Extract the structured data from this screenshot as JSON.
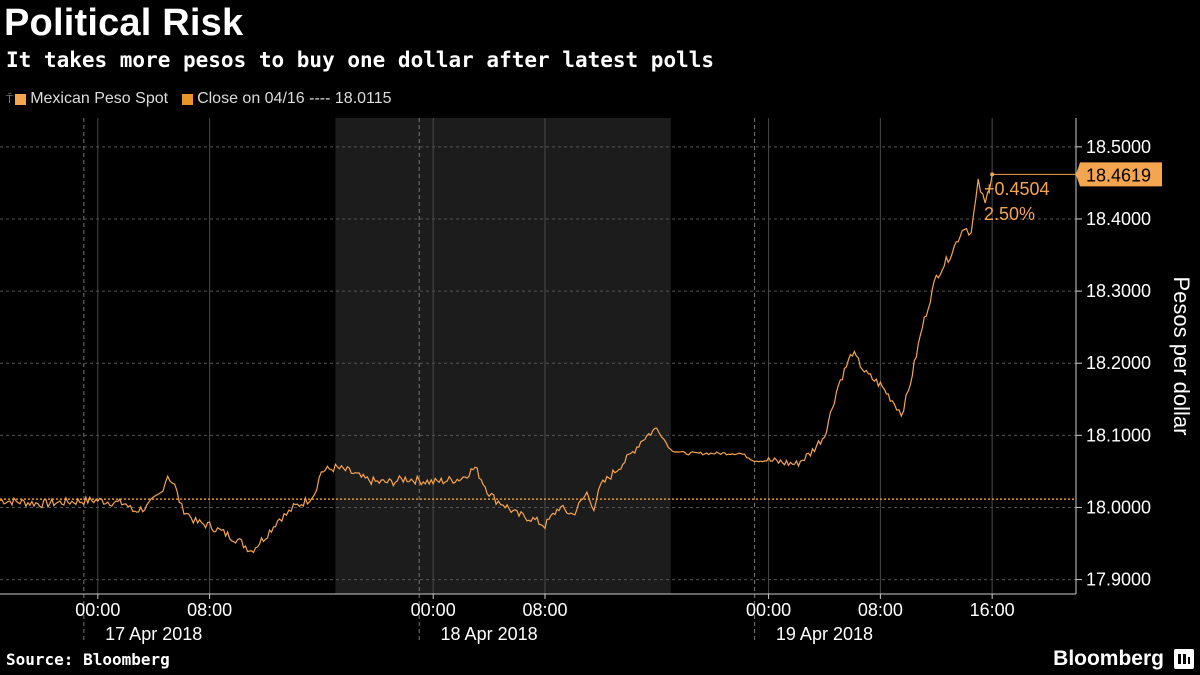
{
  "title": "Political Risk",
  "subtitle": "It takes more pesos to buy one dollar after latest polls",
  "legend": {
    "series_label": "Mexican Peso Spot",
    "close_label": "Close on 04/16 ---- 18.0115"
  },
  "last_value_label": "18.4619",
  "change_abs": "+0.4504",
  "change_pct": "2.50%",
  "source": "Source: Bloomberg",
  "brand": "Bloomberg",
  "colors": {
    "series": "#f5a44f",
    "ref_line": "#e8952e",
    "shade": "#1c1c1c",
    "background": "#000000"
  },
  "chart_data": {
    "type": "line",
    "ylabel": "Pesos per dollar",
    "ylim": [
      17.88,
      18.54
    ],
    "y_ticks": [
      17.9,
      18.0,
      18.1,
      18.2,
      18.3,
      18.4,
      18.5
    ],
    "y_tick_labels": [
      "17.9000",
      "18.0000",
      "18.1000",
      "18.2000",
      "18.3000",
      "18.4000",
      "18.5000"
    ],
    "x_ticks": [
      {
        "t": 0,
        "label": "00:00"
      },
      {
        "t": 8,
        "label": "08:00"
      },
      {
        "t": 24,
        "label": "00:00"
      },
      {
        "t": 32,
        "label": "08:00"
      },
      {
        "t": 48,
        "label": "00:00"
      },
      {
        "t": 56,
        "label": "08:00"
      },
      {
        "t": 64,
        "label": "16:00"
      }
    ],
    "dates": [
      {
        "t": 4,
        "label": "17 Apr 2018"
      },
      {
        "t": 28,
        "label": "18 Apr 2018"
      },
      {
        "t": 52,
        "label": "19 Apr 2018"
      }
    ],
    "day_boundaries": [
      -1,
      23,
      47
    ],
    "shaded_range": [
      17,
      41
    ],
    "xlim": [
      -7,
      70
    ],
    "reference_line": 18.0115,
    "grid": true,
    "series": [
      {
        "name": "Mexican Peso Spot",
        "x": [
          -7,
          -4,
          -2,
          0,
          2,
          2.5,
          3.5,
          4.5,
          5,
          5.5,
          6,
          6.5,
          7,
          8,
          9,
          10,
          11,
          12,
          13,
          13.5,
          14,
          15,
          15.5,
          16,
          17,
          18,
          19,
          20,
          21,
          22,
          24,
          26,
          27,
          28,
          28.5,
          29,
          30,
          31,
          32,
          33,
          34,
          35,
          35.5,
          36,
          37,
          38,
          39,
          40,
          40.5,
          41,
          42,
          44,
          46,
          47,
          48,
          50,
          51,
          52,
          53,
          54,
          55,
          56,
          57,
          57.5,
          58,
          59,
          60,
          61,
          62,
          62.5,
          63,
          63.5,
          64
        ],
        "y": [
          18.01,
          18.005,
          18.008,
          18.01,
          18.005,
          17.995,
          18.0,
          18.02,
          18.045,
          18.03,
          18.0,
          17.99,
          17.98,
          17.975,
          17.965,
          17.955,
          17.94,
          17.96,
          17.985,
          17.99,
          18.0,
          18.01,
          18.02,
          18.05,
          18.055,
          18.05,
          18.04,
          18.035,
          18.035,
          18.04,
          18.035,
          18.04,
          18.055,
          18.02,
          18.01,
          18.005,
          17.99,
          17.985,
          17.975,
          18.0,
          17.99,
          18.02,
          18.0,
          18.03,
          18.05,
          18.07,
          18.095,
          18.11,
          18.095,
          18.08,
          18.075,
          18.075,
          18.075,
          18.065,
          18.065,
          18.06,
          18.075,
          18.1,
          18.17,
          18.215,
          18.185,
          18.17,
          18.145,
          18.13,
          18.16,
          18.25,
          18.32,
          18.35,
          18.39,
          18.38,
          18.45,
          18.42,
          18.4619
        ]
      }
    ]
  }
}
